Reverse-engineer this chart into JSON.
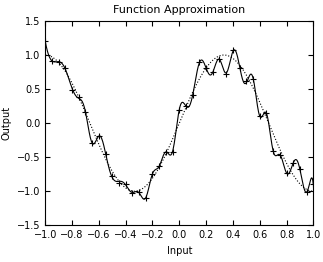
{
  "title": "Function Approximation",
  "xlabel": "Input",
  "ylabel": "Output",
  "xlim": [
    -1,
    1
  ],
  "ylim": [
    -1.5,
    1.5
  ],
  "xticks": [
    -1,
    -0.8,
    -0.6,
    -0.4,
    -0.2,
    0,
    0.2,
    0.4,
    0.6,
    0.8,
    1.0
  ],
  "yticks": [
    -1.5,
    -1,
    -0.5,
    0,
    0.5,
    1,
    1.5
  ],
  "n_points": 41,
  "noise_seed": 7,
  "noise_scale": 0.12,
  "freq": 1.5,
  "solid_color": "black",
  "dotted_color": "black",
  "marker_color": "black",
  "figsize": [
    3.23,
    2.62
  ],
  "dpi": 100
}
